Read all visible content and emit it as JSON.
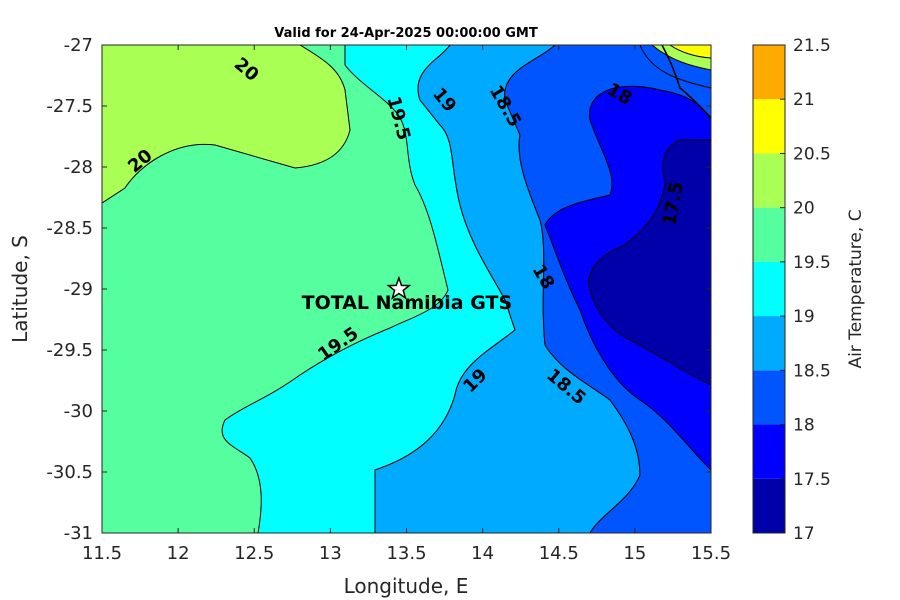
{
  "chart_data": {
    "type": "contour",
    "title": "Valid for 24-Apr-2025 00:00:00 GMT",
    "xlabel": "Longitude, E",
    "ylabel": "Latitude, S",
    "xlim": [
      11.5,
      15.5
    ],
    "ylim": [
      -31,
      -27
    ],
    "xticks": [
      "11.5",
      "12",
      "12.5",
      "13",
      "13.5",
      "14",
      "14.5",
      "15",
      "15.5"
    ],
    "yticks": [
      "-27",
      "-27.5",
      "-28",
      "-28.5",
      "-29",
      "-29.5",
      "-30",
      "-30.5",
      "-31"
    ],
    "colorbar": {
      "label": "Air Temperature, C",
      "ticks": [
        "17",
        "17.5",
        "18",
        "18.5",
        "19",
        "19.5",
        "20",
        "20.5",
        "21",
        "21.5"
      ],
      "levels": [
        17,
        17.5,
        18,
        18.5,
        19,
        19.5,
        20,
        20.5,
        21,
        21.5
      ],
      "colors": [
        "#0000aa",
        "#0000ff",
        "#0055ff",
        "#00aaff",
        "#00ffff",
        "#55ff9f",
        "#aaff55",
        "#ffff00",
        "#ffaa00",
        "#ff5500"
      ]
    },
    "contour_labels": [
      {
        "text": "20",
        "lon": 12.45,
        "lat": -27.2
      },
      {
        "text": "20",
        "lon": 11.75,
        "lat": -27.95
      },
      {
        "text": "19.5",
        "lon": 13.45,
        "lat": -27.6
      },
      {
        "text": "19",
        "lon": 13.75,
        "lat": -27.45
      },
      {
        "text": "18.5",
        "lon": 14.15,
        "lat": -27.5
      },
      {
        "text": "18",
        "lon": 14.9,
        "lat": -27.4
      },
      {
        "text": "17.5",
        "lon": 15.25,
        "lat": -28.3
      },
      {
        "text": "18",
        "lon": 14.4,
        "lat": -28.9
      },
      {
        "text": "19.5",
        "lon": 13.05,
        "lat": -29.45
      },
      {
        "text": "19",
        "lon": 13.95,
        "lat": -29.75
      },
      {
        "text": "18.5",
        "lon": 14.55,
        "lat": -29.8
      }
    ],
    "station": {
      "name": "TOTAL Namibia GTS",
      "lon": 13.45,
      "lat": -29.0
    }
  }
}
